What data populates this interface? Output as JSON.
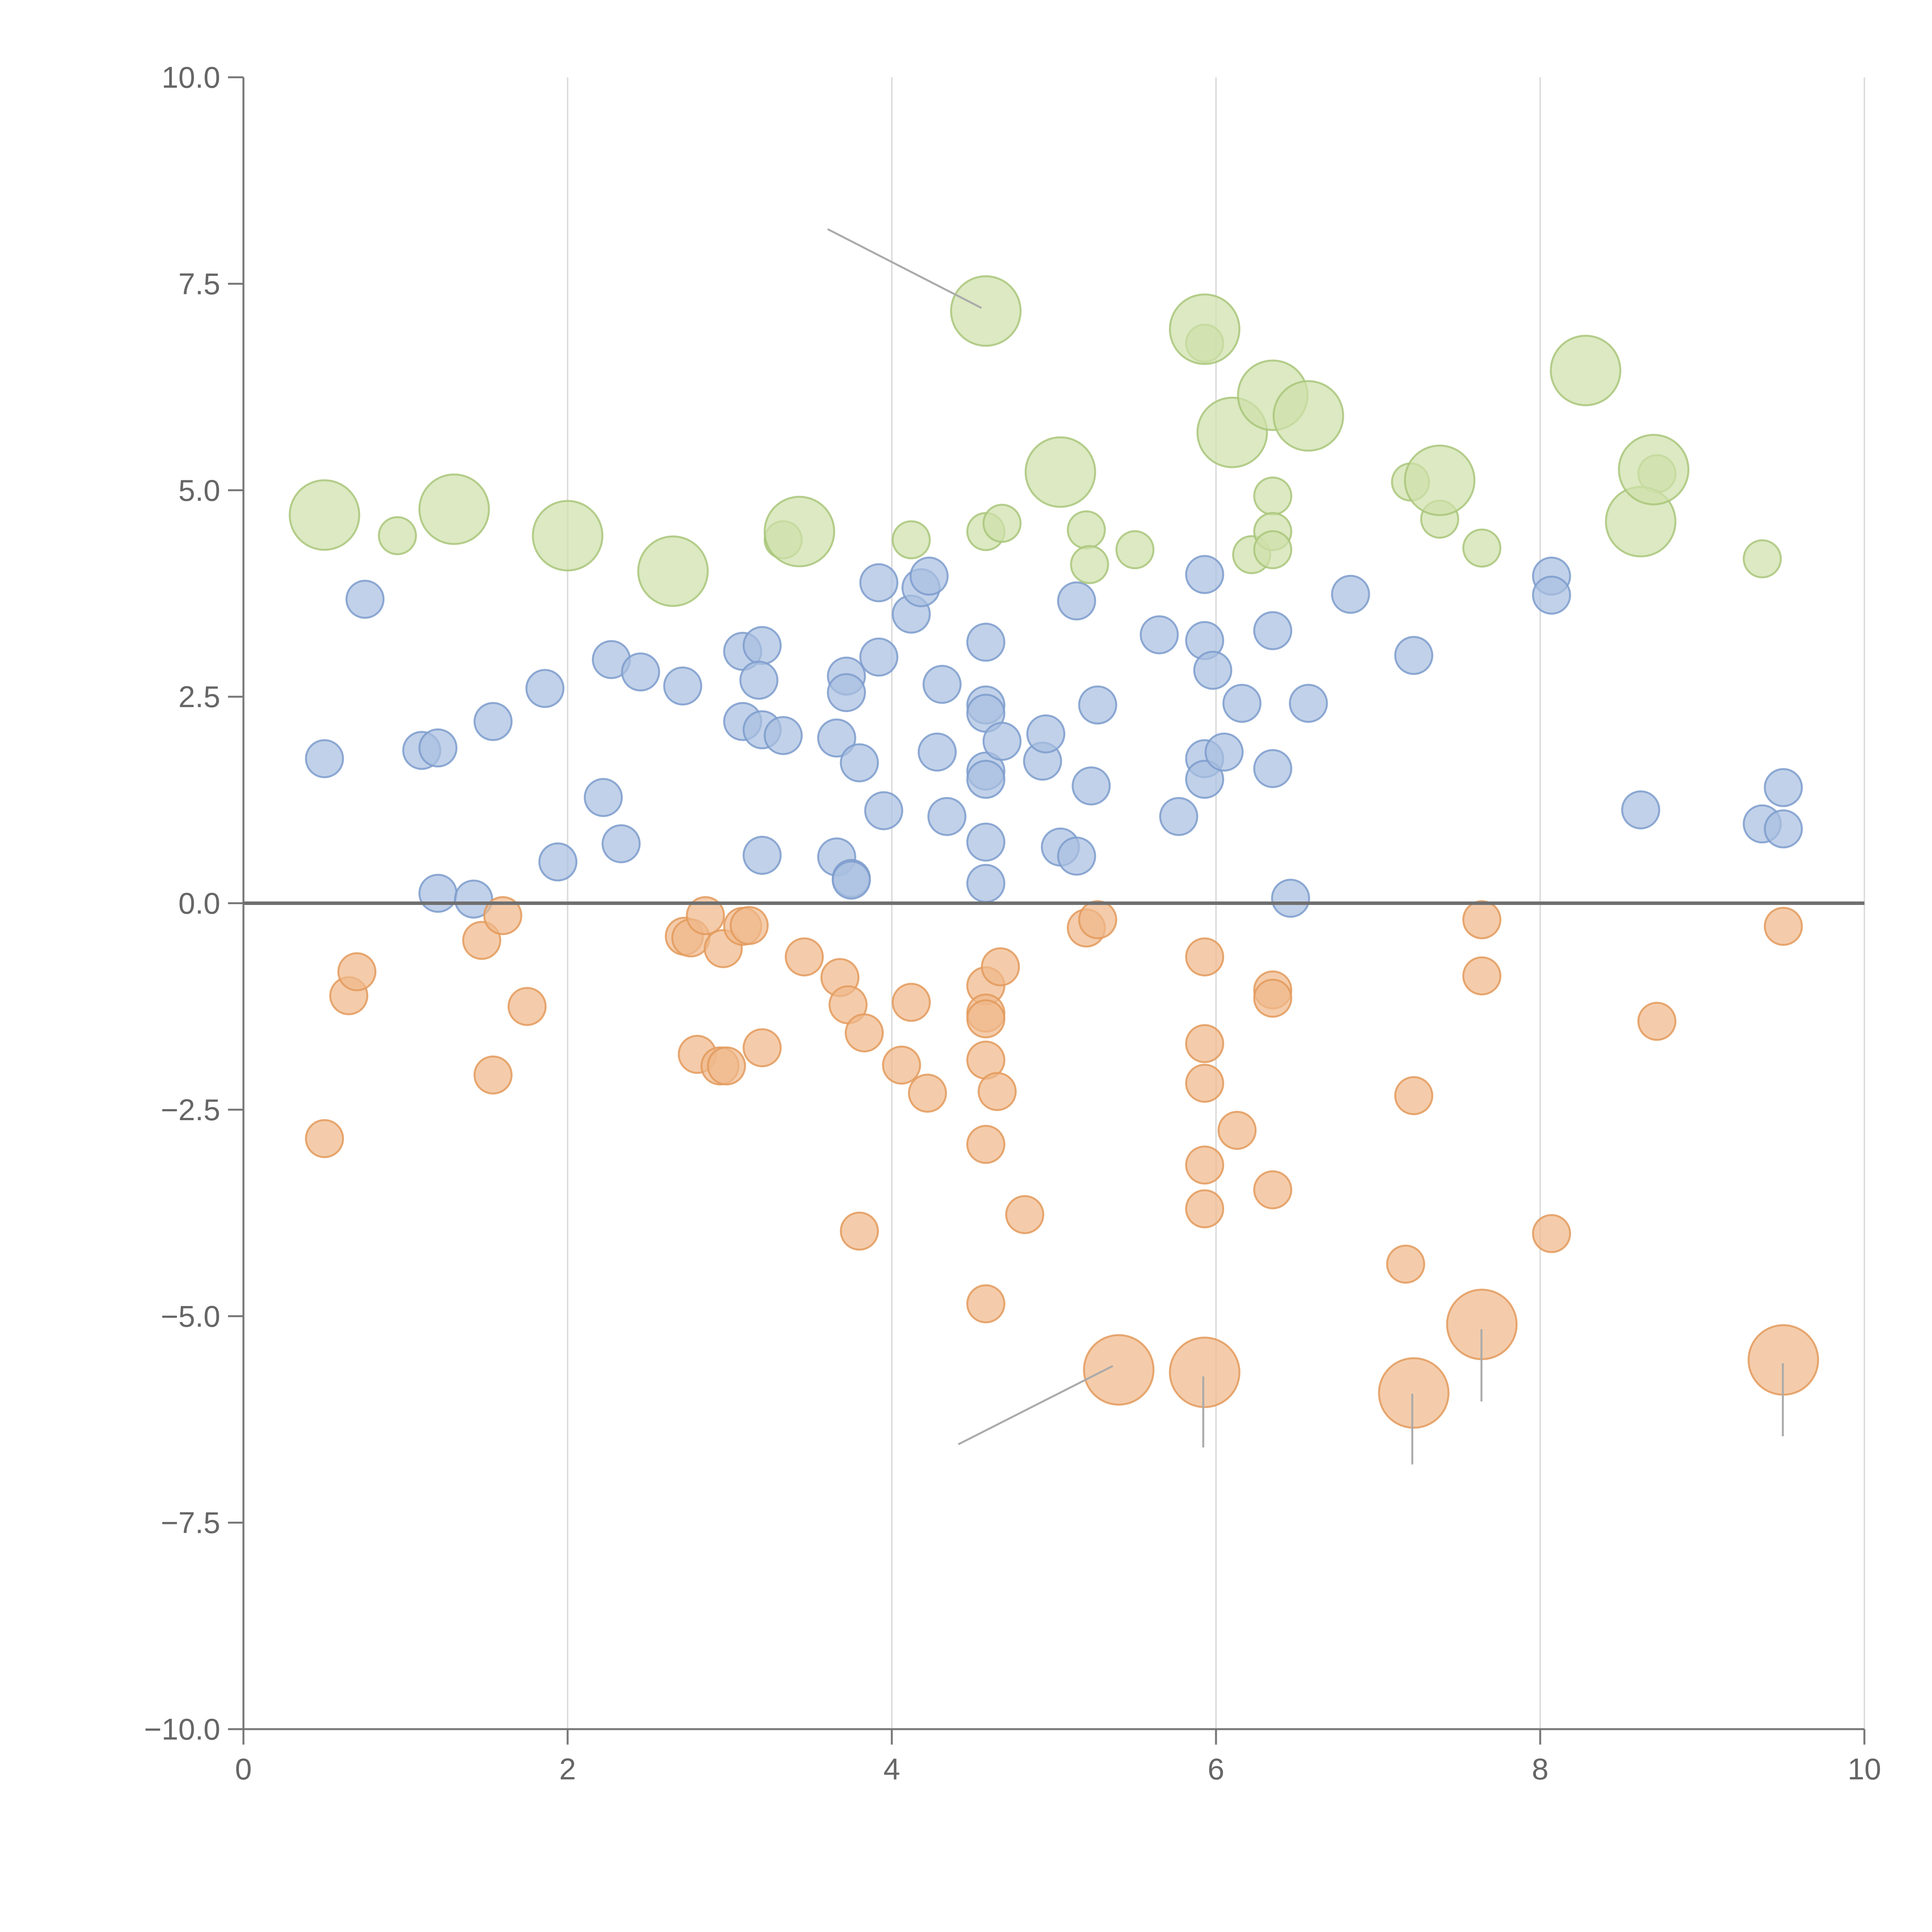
{
  "chart_data": {
    "type": "scatter",
    "title": "",
    "xlabel": "",
    "ylabel": "",
    "xlim": [
      0,
      10
    ],
    "ylim": [
      -10,
      10
    ],
    "grid": {
      "x": true,
      "y": false
    },
    "zero_line": 0,
    "x_ticks": [
      "0",
      "2",
      "4",
      "6",
      "8",
      "10"
    ],
    "y_ticks": [
      "10.0",
      "7.5",
      "5.0",
      "2.5",
      "0.0",
      "−2.5",
      "−5.0",
      "−7.5",
      "−10.0"
    ],
    "axis_color": "#777777",
    "grid_color": "#dddddd",
    "tick_label_color": "#666666",
    "series": [
      {
        "fill": "#a9bfe1",
        "stroke": "#7d9ccc",
        "points": [
          [
            0.5,
            1.75,
            1
          ],
          [
            0.75,
            3.68,
            1
          ],
          [
            1.1,
            1.85,
            1
          ],
          [
            1.2,
            1.88,
            1
          ],
          [
            1.2,
            0.12,
            1
          ],
          [
            1.42,
            0.05,
            1
          ],
          [
            1.54,
            2.2,
            1
          ],
          [
            1.86,
            2.6,
            1
          ],
          [
            1.94,
            0.5,
            1
          ],
          [
            2.22,
            1.28,
            1
          ],
          [
            2.27,
            2.95,
            1
          ],
          [
            2.33,
            0.72,
            1
          ],
          [
            2.45,
            2.8,
            1
          ],
          [
            2.71,
            2.63,
            1
          ],
          [
            3.08,
            3.05,
            1
          ],
          [
            3.08,
            2.2,
            1
          ],
          [
            3.2,
            3.12,
            1
          ],
          [
            3.18,
            2.7,
            1
          ],
          [
            3.2,
            2.1,
            1
          ],
          [
            3.33,
            2.03,
            1
          ],
          [
            3.2,
            0.58,
            1
          ],
          [
            3.66,
            2.0,
            1
          ],
          [
            3.66,
            0.56,
            1
          ],
          [
            3.72,
            2.75,
            1
          ],
          [
            3.72,
            2.55,
            1
          ],
          [
            3.75,
            0.3,
            1
          ],
          [
            3.75,
            0.28,
            1
          ],
          [
            3.8,
            1.7,
            1
          ],
          [
            3.92,
            3.88,
            1
          ],
          [
            3.92,
            2.98,
            1
          ],
          [
            3.95,
            1.12,
            1
          ],
          [
            4.12,
            3.5,
            1
          ],
          [
            4.18,
            3.82,
            1
          ],
          [
            4.23,
            3.96,
            1
          ],
          [
            4.28,
            1.83,
            1
          ],
          [
            4.31,
            2.65,
            1
          ],
          [
            4.34,
            1.05,
            1
          ],
          [
            4.58,
            3.16,
            1
          ],
          [
            4.58,
            2.4,
            1
          ],
          [
            4.58,
            2.3,
            1
          ],
          [
            4.58,
            1.6,
            1
          ],
          [
            4.58,
            1.5,
            1
          ],
          [
            4.58,
            0.74,
            1
          ],
          [
            4.58,
            0.24,
            1
          ],
          [
            4.68,
            1.96,
            1
          ],
          [
            4.93,
            1.72,
            1
          ],
          [
            4.95,
            2.05,
            1
          ],
          [
            5.04,
            0.68,
            1
          ],
          [
            5.14,
            0.57,
            1
          ],
          [
            5.14,
            3.66,
            1
          ],
          [
            5.23,
            1.42,
            1
          ],
          [
            5.27,
            2.4,
            1
          ],
          [
            5.65,
            3.25,
            1
          ],
          [
            5.77,
            1.05,
            1
          ],
          [
            5.93,
            3.98,
            1
          ],
          [
            5.93,
            3.18,
            1
          ],
          [
            5.93,
            1.75,
            1
          ],
          [
            5.93,
            1.5,
            1
          ],
          [
            5.98,
            2.82,
            1
          ],
          [
            6.05,
            1.83,
            1
          ],
          [
            6.16,
            2.42,
            1
          ],
          [
            6.35,
            3.3,
            1
          ],
          [
            6.35,
            1.63,
            1
          ],
          [
            6.46,
            0.06,
            1
          ],
          [
            6.57,
            2.42,
            1
          ],
          [
            6.83,
            3.74,
            1
          ],
          [
            7.22,
            3.0,
            1
          ],
          [
            8.07,
            3.96,
            1
          ],
          [
            8.07,
            3.73,
            1
          ],
          [
            8.62,
            1.13,
            1
          ],
          [
            9.37,
            0.96,
            1
          ],
          [
            9.5,
            0.9,
            1
          ],
          [
            9.5,
            1.4,
            1
          ]
        ]
      },
      {
        "fill": "#f0b98b",
        "stroke": "#e39a5c",
        "points": [
          [
            0.5,
            -2.85,
            1
          ],
          [
            0.65,
            -1.12,
            1
          ],
          [
            0.7,
            -0.83,
            1
          ],
          [
            1.47,
            -0.45,
            1
          ],
          [
            1.54,
            -2.08,
            1
          ],
          [
            1.6,
            -0.15,
            1
          ],
          [
            1.75,
            -1.25,
            1
          ],
          [
            2.72,
            -0.4,
            1
          ],
          [
            2.76,
            -0.42,
            1
          ],
          [
            2.8,
            -1.83,
            1
          ],
          [
            2.85,
            -0.15,
            1
          ],
          [
            2.96,
            -0.55,
            1
          ],
          [
            2.94,
            -1.97,
            1
          ],
          [
            2.98,
            -1.97,
            1
          ],
          [
            3.08,
            -0.28,
            1
          ],
          [
            3.12,
            -0.27,
            1
          ],
          [
            3.2,
            -1.75,
            1
          ],
          [
            3.46,
            -0.65,
            1
          ],
          [
            3.68,
            -0.9,
            1
          ],
          [
            3.73,
            -1.23,
            1
          ],
          [
            3.83,
            -1.57,
            1
          ],
          [
            3.8,
            -3.97,
            1
          ],
          [
            4.06,
            -1.96,
            1
          ],
          [
            4.12,
            -1.2,
            1
          ],
          [
            4.22,
            -2.3,
            1
          ],
          [
            4.58,
            -1.0,
            1
          ],
          [
            4.58,
            -1.33,
            1
          ],
          [
            4.58,
            -1.4,
            1
          ],
          [
            4.58,
            -1.9,
            1
          ],
          [
            4.58,
            -2.92,
            1
          ],
          [
            4.58,
            -4.85,
            1
          ],
          [
            4.65,
            -2.28,
            1
          ],
          [
            4.67,
            -0.77,
            1
          ],
          [
            4.82,
            -3.77,
            1
          ],
          [
            5.2,
            -0.3,
            1
          ],
          [
            5.27,
            -0.2,
            1
          ],
          [
            5.93,
            -0.65,
            1
          ],
          [
            5.93,
            -1.7,
            1
          ],
          [
            5.93,
            -2.18,
            1
          ],
          [
            5.93,
            -3.17,
            1
          ],
          [
            5.93,
            -3.7,
            1
          ],
          [
            6.13,
            -2.75,
            1
          ],
          [
            6.35,
            -1.05,
            1
          ],
          [
            6.35,
            -1.15,
            1
          ],
          [
            6.35,
            -3.47,
            1
          ],
          [
            7.17,
            -4.37,
            1
          ],
          [
            7.22,
            -2.33,
            1
          ],
          [
            7.64,
            -0.2,
            1
          ],
          [
            7.64,
            -0.88,
            1
          ],
          [
            8.07,
            -4.0,
            1
          ],
          [
            8.72,
            -1.43,
            1
          ],
          [
            9.5,
            -0.28,
            1
          ],
          [
            5.4,
            -5.65,
            2
          ],
          [
            5.93,
            -5.68,
            2
          ],
          [
            7.22,
            -5.93,
            2
          ],
          [
            7.64,
            -5.1,
            2
          ],
          [
            9.5,
            -5.53,
            2
          ]
        ]
      },
      {
        "fill": "#cfe0ab",
        "stroke": "#a9c57a",
        "points": [
          [
            0.95,
            4.45,
            1
          ],
          [
            3.33,
            4.4,
            1
          ],
          [
            4.12,
            4.4,
            1
          ],
          [
            4.58,
            4.5,
            1
          ],
          [
            4.68,
            4.6,
            1
          ],
          [
            5.2,
            4.52,
            1
          ],
          [
            5.22,
            4.1,
            1
          ],
          [
            5.5,
            4.28,
            1
          ],
          [
            5.93,
            6.78,
            1
          ],
          [
            6.22,
            4.22,
            1
          ],
          [
            6.35,
            4.93,
            1
          ],
          [
            6.35,
            4.5,
            1
          ],
          [
            6.35,
            4.28,
            1
          ],
          [
            7.2,
            5.1,
            1
          ],
          [
            7.38,
            4.65,
            1
          ],
          [
            7.64,
            4.3,
            1
          ],
          [
            8.72,
            5.2,
            1
          ],
          [
            9.37,
            4.17,
            1
          ],
          [
            0.5,
            4.7,
            2
          ],
          [
            1.3,
            4.77,
            2
          ],
          [
            2.0,
            4.45,
            2
          ],
          [
            2.65,
            4.02,
            2
          ],
          [
            3.43,
            4.5,
            2
          ],
          [
            4.58,
            7.17,
            2
          ],
          [
            5.04,
            5.22,
            2
          ],
          [
            5.93,
            6.95,
            2
          ],
          [
            6.1,
            5.7,
            2
          ],
          [
            6.35,
            6.15,
            2
          ],
          [
            6.57,
            5.9,
            2
          ],
          [
            7.38,
            5.12,
            2
          ],
          [
            8.28,
            6.45,
            2
          ],
          [
            8.62,
            4.62,
            2
          ],
          [
            8.7,
            5.25,
            2
          ]
        ]
      }
    ]
  }
}
